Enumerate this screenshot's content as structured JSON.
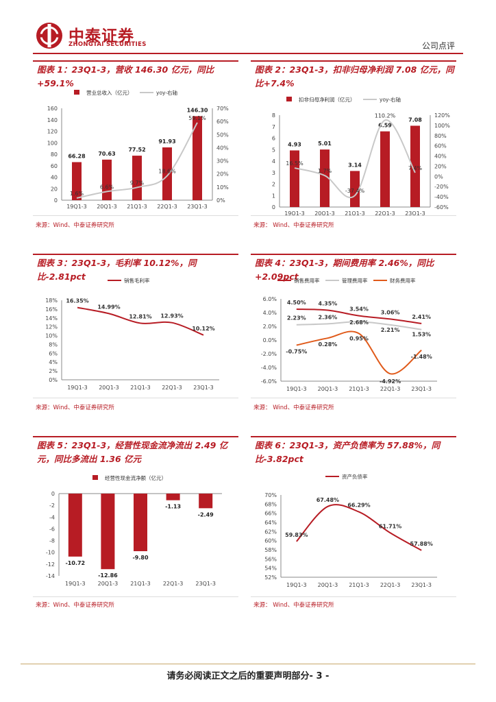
{
  "header": {
    "brand_cn": "中泰证券",
    "brand_en": "ZHONGTAI SECURITIES",
    "doc_type": "公司点评",
    "brand_color": "#b71c24"
  },
  "panels": [
    {
      "title": "图表 1：23Q1-3，营收 146.30 亿元，同比+59.1%",
      "source": "来源：Wind、中泰证券研究所",
      "legend": [
        "营业总收入（亿元）",
        "yoy-右轴"
      ]
    },
    {
      "title": "图表 2：23Q1-3，扣非归母净利润 7.08 亿元，同比+7.4%",
      "source": "来源： Wind、中泰证券研究所",
      "legend": [
        "扣非归母净利润（亿元）",
        "yoy-右轴"
      ]
    },
    {
      "title": "图表 3：23Q1-3，毛利率 10.12%，同比-2.81pct",
      "source": "来源：Wind、中泰证券研究所",
      "legend": [
        "销售毛利率"
      ]
    },
    {
      "title": "图表 4：23Q1-3，期间费用率 2.46%，同比+2.09pct",
      "source": "来源： Wind、中泰证券研究所",
      "legend": [
        "销售费用率",
        "管理费用率",
        "财务费用率"
      ]
    },
    {
      "title": "图表 5：23Q1-3，经营性现金流净流出 2.49 亿元，同比多流出 1.36 亿元",
      "source": "来源：Wind、中泰证券研究所",
      "legend": [
        "经营性现金流净额（亿元）"
      ]
    },
    {
      "title": "图表 6：23Q1-3，资产负债率为 57.88%，同比-3.82pct",
      "source": "来源： Wind、中泰证券研究所",
      "legend": [
        "资产负债率"
      ]
    }
  ],
  "chart_data": [
    {
      "type": "bar+line",
      "categories": [
        "19Q1-3",
        "20Q1-3",
        "21Q1-3",
        "22Q1-3",
        "23Q1-3"
      ],
      "series": [
        {
          "name": "营业总收入（亿元）",
          "kind": "bar",
          "axis": "left",
          "values": [
            66.28,
            70.63,
            77.52,
            91.93,
            146.3
          ],
          "labels": [
            "66.28",
            "70.63",
            "77.52",
            "91.93",
            "146.30"
          ]
        },
        {
          "name": "yoy-右轴",
          "kind": "line",
          "axis": "right",
          "values": [
            1.6,
            6.6,
            9.7,
            18.6,
            59.1
          ],
          "labels": [
            "1.6%",
            "6.6%",
            "9.7%",
            "18.6%",
            "59.1%"
          ]
        }
      ],
      "yleft": {
        "min": 0,
        "max": 160,
        "step": 20,
        "ticks": [
          "0",
          "20",
          "40",
          "60",
          "80",
          "100",
          "120",
          "140",
          "160"
        ]
      },
      "yright": {
        "min": 0,
        "max": 70,
        "step": 10,
        "ticks": [
          "0%",
          "10%",
          "20%",
          "30%",
          "40%",
          "50%",
          "60%",
          "70%"
        ]
      },
      "colors": {
        "bar": "#b71c24",
        "line": "#c8c8c8"
      }
    },
    {
      "type": "bar+line",
      "categories": [
        "19Q1-3",
        "20Q1-3",
        "21Q1-3",
        "22Q1-3",
        "23Q1-3"
      ],
      "series": [
        {
          "name": "扣非归母净利润（亿元）",
          "kind": "bar",
          "axis": "left",
          "values": [
            4.93,
            5.01,
            3.14,
            6.59,
            7.08
          ],
          "labels": [
            "4.93",
            "5.01",
            "3.14",
            "6.59",
            "7.08"
          ]
        },
        {
          "name": "yoy-右轴",
          "kind": "line",
          "axis": "right",
          "values": [
            16.5,
            1.7,
            -37.4,
            110.2,
            7.4
          ],
          "labels": [
            "16.5%",
            "1.7%",
            "-37.4%",
            "110.2%",
            "7.4%"
          ]
        }
      ],
      "yleft": {
        "min": 0,
        "max": 8,
        "step": 1,
        "ticks": [
          "0",
          "1",
          "2",
          "3",
          "4",
          "5",
          "6",
          "7",
          "8"
        ]
      },
      "yright": {
        "min": -60,
        "max": 120,
        "step": 20,
        "ticks": [
          "-60%",
          "-40%",
          "-20%",
          "0%",
          "20%",
          "40%",
          "60%",
          "80%",
          "100%",
          "120%"
        ]
      },
      "colors": {
        "bar": "#b71c24",
        "line": "#c8c8c8"
      }
    },
    {
      "type": "line",
      "categories": [
        "19Q1-3",
        "20Q1-3",
        "21Q1-3",
        "22Q1-3",
        "23Q1-3"
      ],
      "series": [
        {
          "name": "销售毛利率",
          "values": [
            16.35,
            14.99,
            12.81,
            12.93,
            10.12
          ],
          "labels": [
            "16.35%",
            "14.99%",
            "12.81%",
            "12.93%",
            "10.12%"
          ],
          "color": "#b71c24"
        }
      ],
      "y": {
        "min": 0,
        "max": 18,
        "step": 2,
        "ticks": [
          "0%",
          "2%",
          "4%",
          "6%",
          "8%",
          "10%",
          "12%",
          "14%",
          "16%",
          "18%"
        ]
      }
    },
    {
      "type": "line",
      "categories": [
        "19Q1-3",
        "20Q1-3",
        "21Q1-3",
        "22Q1-3",
        "23Q1-3"
      ],
      "series": [
        {
          "name": "销售费用率",
          "values": [
            4.5,
            4.35,
            3.54,
            3.06,
            2.41
          ],
          "labels": [
            "4.50%",
            "4.35%",
            "3.54%",
            "3.06%",
            "2.41%"
          ],
          "color": "#b71c24"
        },
        {
          "name": "管理费用率",
          "values": [
            2.23,
            2.36,
            2.68,
            2.21,
            1.53
          ],
          "labels": [
            "2.23%",
            "2.36%",
            "2.68%",
            "2.21%",
            "1.53%"
          ],
          "color": "#c8c8c8"
        },
        {
          "name": "财务费用率",
          "values": [
            -0.75,
            0.28,
            0.95,
            -4.92,
            -1.48
          ],
          "labels": [
            "-0.75%",
            "0.28%",
            "0.95%",
            "-4.92%",
            "-1.48%"
          ],
          "color": "#e05a1a"
        }
      ],
      "y": {
        "min": -6,
        "max": 6,
        "step": 2,
        "ticks": [
          "-6.0%",
          "-4.0%",
          "-2.0%",
          "0.0%",
          "2.0%",
          "4.0%",
          "6.0%"
        ]
      }
    },
    {
      "type": "bar",
      "categories": [
        "19Q1-3",
        "20Q1-3",
        "21Q1-3",
        "22Q1-3",
        "23Q1-3"
      ],
      "series": [
        {
          "name": "经营性现金流净额（亿元）",
          "values": [
            -10.72,
            -12.86,
            -9.8,
            -1.13,
            -2.49
          ],
          "labels": [
            "-10.72",
            "-12.86",
            "-9.80",
            "-1.13",
            "-2.49"
          ],
          "color": "#b71c24"
        }
      ],
      "y": {
        "min": -14,
        "max": 0,
        "step": 2,
        "ticks": [
          "-14",
          "-12",
          "-10",
          "-8",
          "-6",
          "-4",
          "-2",
          "0"
        ]
      }
    },
    {
      "type": "line",
      "categories": [
        "19Q1-3",
        "20Q1-3",
        "21Q1-3",
        "22Q1-3",
        "23Q1-3"
      ],
      "series": [
        {
          "name": "资产负债率",
          "values": [
            59.83,
            67.48,
            66.29,
            61.71,
            57.88
          ],
          "labels": [
            "59.83%",
            "67.48%",
            "66.29%",
            "61.71%",
            "57.88%"
          ],
          "color": "#b71c24"
        }
      ],
      "y": {
        "min": 52,
        "max": 70,
        "step": 2,
        "ticks": [
          "52%",
          "54%",
          "56%",
          "58%",
          "60%",
          "62%",
          "64%",
          "66%",
          "68%",
          "70%"
        ]
      }
    }
  ],
  "footer": {
    "text": "请务必阅读正文之后的重要声明部分- 3 -"
  }
}
